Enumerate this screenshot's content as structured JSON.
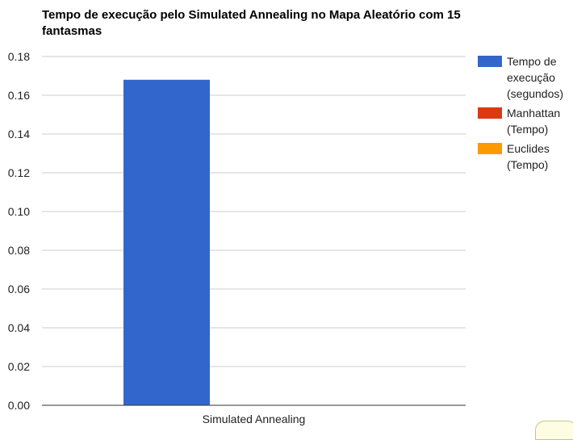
{
  "chart_data": {
    "type": "bar",
    "title_lines": [
      "Tempo de execução pelo Simulated Annealing no Mapa Aleatório com 15",
      "fantasmas"
    ],
    "categories": [
      "Simulated Annealing"
    ],
    "series": [
      {
        "name": "Tempo de execução (segundos)",
        "legend_lines": [
          "Tempo de",
          "execução",
          "(segundos)"
        ],
        "color": "#3366cc",
        "values": [
          0.168
        ]
      },
      {
        "name": "Manhattan (Tempo)",
        "legend_lines": [
          "Manhattan",
          "(Tempo)"
        ],
        "color": "#dc3912",
        "values": [
          null
        ]
      },
      {
        "name": "Euclides (Tempo)",
        "legend_lines": [
          "Euclides",
          "(Tempo)"
        ],
        "color": "#ff9900",
        "values": [
          null
        ]
      }
    ],
    "y_ticks": [
      "0.00",
      "0.02",
      "0.04",
      "0.06",
      "0.08",
      "0.10",
      "0.12",
      "0.14",
      "0.16",
      "0.18"
    ],
    "ylim": [
      0,
      0.18
    ],
    "grid": true,
    "legend_position": "right",
    "gridline_color": "#cccccc",
    "axis_color": "#333333"
  }
}
